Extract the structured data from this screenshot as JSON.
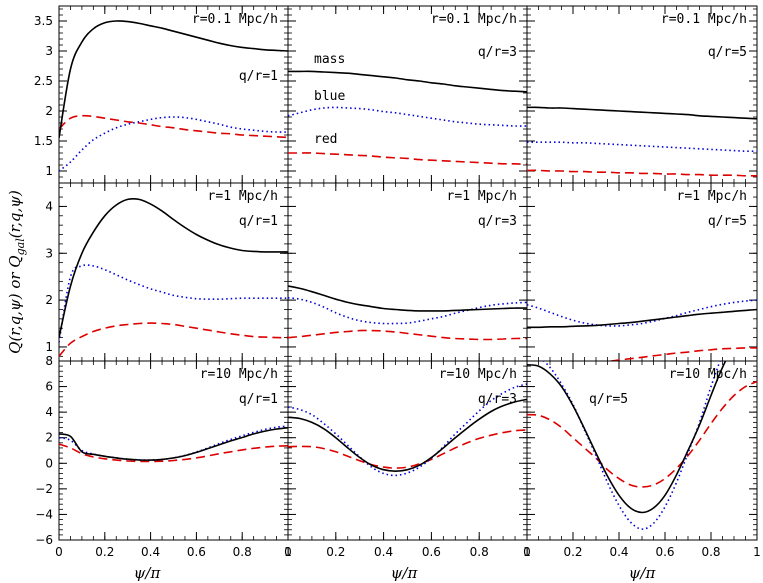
{
  "chart_data": {
    "type": "line",
    "xlabel": "ψ/π",
    "ylabel": "Q(r,q,ψ) or Q_gal(r,q,ψ)",
    "ylabel_parts": {
      "a": "Q(r,q,ψ) or Q",
      "sub": "gal",
      "b": "(r,q,ψ)"
    },
    "colors": {
      "mass": "#000000",
      "blue": "#0000dd",
      "red": "#dd0000"
    },
    "series_labels": {
      "mass": "mass",
      "blue": "blue",
      "red": "red"
    },
    "x_ticks": [
      "0",
      "0.2",
      "0.4",
      "0.6",
      "0.8",
      "1"
    ],
    "x_tick_values": [
      0,
      0.2,
      0.4,
      0.6,
      0.8,
      1
    ],
    "x": [
      0.0,
      0.05,
      0.1,
      0.15,
      0.2,
      0.25,
      0.3,
      0.35,
      0.4,
      0.45,
      0.5,
      0.55,
      0.6,
      0.65,
      0.7,
      0.75,
      0.8,
      0.85,
      0.9,
      0.95,
      1.0
    ],
    "rows": [
      {
        "ylim": [
          0.8,
          3.75
        ],
        "y_ticks": [
          1,
          1.5,
          2,
          2.5,
          3,
          3.5
        ],
        "y_tick_labels": [
          "1",
          "1.5",
          "2",
          "2.5",
          "3",
          "3.5"
        ],
        "panels": [
          {
            "r_label": "r=0.1 Mpc/h",
            "q_label": "q/r=1",
            "mass": [
              1.55,
              2.7,
              3.15,
              3.37,
              3.47,
              3.5,
              3.49,
              3.46,
              3.42,
              3.38,
              3.33,
              3.28,
              3.23,
              3.18,
              3.13,
              3.09,
              3.06,
              3.04,
              3.02,
              3.01,
              3.0
            ],
            "blue": [
              1.0,
              1.15,
              1.35,
              1.52,
              1.63,
              1.72,
              1.78,
              1.82,
              1.86,
              1.89,
              1.9,
              1.89,
              1.86,
              1.82,
              1.78,
              1.73,
              1.7,
              1.68,
              1.66,
              1.65,
              1.65
            ],
            "red": [
              1.7,
              1.88,
              1.92,
              1.91,
              1.88,
              1.85,
              1.82,
              1.8,
              1.77,
              1.74,
              1.72,
              1.69,
              1.67,
              1.65,
              1.63,
              1.62,
              1.6,
              1.59,
              1.58,
              1.57,
              1.56
            ]
          },
          {
            "r_label": "r=0.1 Mpc/h",
            "q_label": "q/r=3",
            "mass": [
              2.66,
              2.66,
              2.66,
              2.65,
              2.64,
              2.63,
              2.61,
              2.59,
              2.57,
              2.55,
              2.52,
              2.5,
              2.47,
              2.45,
              2.42,
              2.4,
              2.38,
              2.36,
              2.34,
              2.33,
              2.32
            ],
            "blue": [
              1.92,
              1.97,
              2.02,
              2.05,
              2.06,
              2.05,
              2.04,
              2.02,
              1.99,
              1.97,
              1.94,
              1.91,
              1.88,
              1.85,
              1.82,
              1.8,
              1.78,
              1.77,
              1.76,
              1.75,
              1.75
            ],
            "red": [
              1.3,
              1.3,
              1.3,
              1.29,
              1.28,
              1.27,
              1.26,
              1.25,
              1.23,
              1.22,
              1.21,
              1.19,
              1.18,
              1.17,
              1.16,
              1.15,
              1.14,
              1.13,
              1.12,
              1.12,
              1.11
            ],
            "series_label_y": {
              "mass": 2.8,
              "blue": 2.18,
              "red": 1.47
            }
          },
          {
            "r_label": "r=0.1 Mpc/h",
            "q_label": "q/r=5",
            "mass": [
              2.06,
              2.06,
              2.05,
              2.05,
              2.04,
              2.03,
              2.02,
              2.01,
              2.0,
              1.99,
              1.98,
              1.97,
              1.96,
              1.95,
              1.94,
              1.92,
              1.91,
              1.9,
              1.89,
              1.88,
              1.87
            ],
            "blue": [
              1.48,
              1.48,
              1.48,
              1.48,
              1.47,
              1.47,
              1.46,
              1.45,
              1.44,
              1.43,
              1.42,
              1.41,
              1.4,
              1.39,
              1.38,
              1.37,
              1.36,
              1.35,
              1.34,
              1.33,
              1.33
            ],
            "red": [
              1.01,
              1.01,
              1.0,
              1.0,
              0.99,
              0.99,
              0.98,
              0.98,
              0.97,
              0.97,
              0.96,
              0.96,
              0.95,
              0.95,
              0.94,
              0.94,
              0.93,
              0.93,
              0.93,
              0.92,
              0.92
            ]
          }
        ]
      },
      {
        "ylim": [
          0.7,
          4.5
        ],
        "y_ticks": [
          1,
          2,
          3,
          4
        ],
        "y_tick_labels": [
          "1",
          "2",
          "3",
          "4"
        ],
        "panels": [
          {
            "r_label": "r=1 Mpc/h",
            "q_label": "q/r=1",
            "mass": [
              1.2,
              2.3,
              3.0,
              3.45,
              3.8,
              4.03,
              4.15,
              4.15,
              4.05,
              3.9,
              3.72,
              3.55,
              3.4,
              3.28,
              3.18,
              3.11,
              3.06,
              3.04,
              3.03,
              3.03,
              3.03
            ],
            "blue": [
              1.1,
              2.5,
              2.73,
              2.73,
              2.65,
              2.54,
              2.43,
              2.33,
              2.24,
              2.17,
              2.1,
              2.06,
              2.03,
              2.02,
              2.02,
              2.03,
              2.04,
              2.04,
              2.04,
              2.04,
              2.04
            ],
            "red": [
              0.8,
              1.08,
              1.22,
              1.33,
              1.4,
              1.45,
              1.48,
              1.5,
              1.51,
              1.5,
              1.48,
              1.44,
              1.4,
              1.36,
              1.32,
              1.28,
              1.25,
              1.22,
              1.21,
              1.2,
              1.2
            ]
          },
          {
            "r_label": "r=1 Mpc/h",
            "q_label": "q/r=3",
            "mass": [
              2.3,
              2.25,
              2.18,
              2.1,
              2.02,
              1.95,
              1.9,
              1.86,
              1.82,
              1.8,
              1.78,
              1.77,
              1.77,
              1.77,
              1.78,
              1.79,
              1.8,
              1.81,
              1.82,
              1.83,
              1.83
            ],
            "blue": [
              2.05,
              2.02,
              1.95,
              1.85,
              1.73,
              1.63,
              1.56,
              1.52,
              1.5,
              1.5,
              1.51,
              1.55,
              1.6,
              1.65,
              1.72,
              1.78,
              1.84,
              1.89,
              1.92,
              1.94,
              1.95
            ],
            "red": [
              1.2,
              1.22,
              1.25,
              1.28,
              1.31,
              1.33,
              1.35,
              1.35,
              1.34,
              1.32,
              1.29,
              1.26,
              1.23,
              1.2,
              1.18,
              1.17,
              1.16,
              1.16,
              1.17,
              1.18,
              1.18
            ]
          },
          {
            "r_label": "r=1 Mpc/h",
            "q_label": "q/r=5",
            "mass": [
              1.42,
              1.42,
              1.43,
              1.43,
              1.44,
              1.45,
              1.46,
              1.48,
              1.5,
              1.52,
              1.55,
              1.58,
              1.61,
              1.64,
              1.67,
              1.7,
              1.72,
              1.74,
              1.76,
              1.78,
              1.8
            ],
            "blue": [
              1.9,
              1.83,
              1.74,
              1.65,
              1.57,
              1.51,
              1.47,
              1.45,
              1.45,
              1.47,
              1.5,
              1.55,
              1.61,
              1.67,
              1.74,
              1.8,
              1.86,
              1.91,
              1.95,
              1.98,
              2.0
            ],
            "red": [
              0.65,
              0.64,
              0.63,
              0.63,
              0.64,
              0.65,
              0.67,
              0.69,
              0.72,
              0.75,
              0.78,
              0.81,
              0.84,
              0.87,
              0.89,
              0.92,
              0.94,
              0.96,
              0.97,
              0.98,
              0.98
            ]
          }
        ]
      },
      {
        "ylim": [
          -6,
          8
        ],
        "y_ticks": [
          -6,
          -4,
          -2,
          0,
          2,
          4,
          6,
          8
        ],
        "y_tick_labels": [
          "−6",
          "−4",
          "−2",
          "0",
          "2",
          "4",
          "6",
          "8"
        ],
        "panels": [
          {
            "r_label": "r=10 Mpc/h",
            "q_label": "q/r=1",
            "mass": [
              2.3,
              2.1,
              0.9,
              0.7,
              0.55,
              0.42,
              0.32,
              0.26,
              0.25,
              0.3,
              0.42,
              0.6,
              0.85,
              1.15,
              1.45,
              1.75,
              2.02,
              2.3,
              2.52,
              2.68,
              2.78
            ],
            "blue": [
              2.0,
              1.8,
              1.0,
              0.72,
              0.55,
              0.42,
              0.32,
              0.26,
              0.25,
              0.3,
              0.42,
              0.62,
              0.88,
              1.2,
              1.55,
              1.87,
              2.15,
              2.42,
              2.65,
              2.82,
              2.92
            ],
            "red": [
              1.5,
              1.2,
              0.75,
              0.5,
              0.35,
              0.25,
              0.18,
              0.15,
              0.14,
              0.16,
              0.22,
              0.3,
              0.42,
              0.58,
              0.75,
              0.9,
              1.05,
              1.17,
              1.27,
              1.34,
              1.37
            ]
          },
          {
            "r_label": "r=10 Mpc/h",
            "q_label": "q/r=3",
            "mass": [
              3.6,
              3.5,
              3.2,
              2.7,
              2.0,
              1.2,
              0.45,
              -0.15,
              -0.5,
              -0.62,
              -0.5,
              -0.15,
              0.45,
              1.2,
              2.0,
              2.75,
              3.45,
              4.05,
              4.5,
              4.8,
              5.0
            ],
            "blue": [
              4.4,
              4.2,
              3.8,
              3.1,
              2.3,
              1.4,
              0.5,
              -0.3,
              -0.8,
              -0.95,
              -0.75,
              -0.3,
              0.4,
              1.3,
              2.3,
              3.2,
              4.1,
              4.9,
              5.5,
              5.95,
              6.2
            ],
            "red": [
              1.3,
              1.32,
              1.3,
              1.15,
              0.9,
              0.55,
              0.2,
              -0.1,
              -0.3,
              -0.38,
              -0.3,
              -0.05,
              0.3,
              0.75,
              1.2,
              1.6,
              1.95,
              2.2,
              2.4,
              2.55,
              2.6
            ]
          },
          {
            "r_label": "r=10 Mpc/h",
            "q_label": "q/r=5",
            "mass": [
              7.7,
              7.6,
              7.0,
              6.0,
              4.5,
              2.7,
              0.8,
              -1.0,
              -2.5,
              -3.5,
              -3.85,
              -3.5,
              -2.5,
              -0.9,
              1.0,
              3.0,
              5.3,
              7.5,
              9.2,
              10.3,
              11.0
            ],
            "blue": [
              8.6,
              8.3,
              7.5,
              6.2,
              4.6,
              2.6,
              0.6,
              -1.5,
              -3.3,
              -4.6,
              -5.15,
              -4.7,
              -3.4,
              -1.5,
              0.8,
              3.2,
              6.0,
              8.5,
              10.5,
              11.8,
              12.5
            ],
            "red": [
              3.8,
              3.75,
              3.4,
              2.8,
              2.0,
              1.2,
              0.4,
              -0.5,
              -1.2,
              -1.7,
              -1.85,
              -1.7,
              -1.2,
              -0.4,
              0.6,
              1.8,
              3.1,
              4.3,
              5.3,
              6.0,
              6.4
            ]
          }
        ]
      }
    ]
  }
}
